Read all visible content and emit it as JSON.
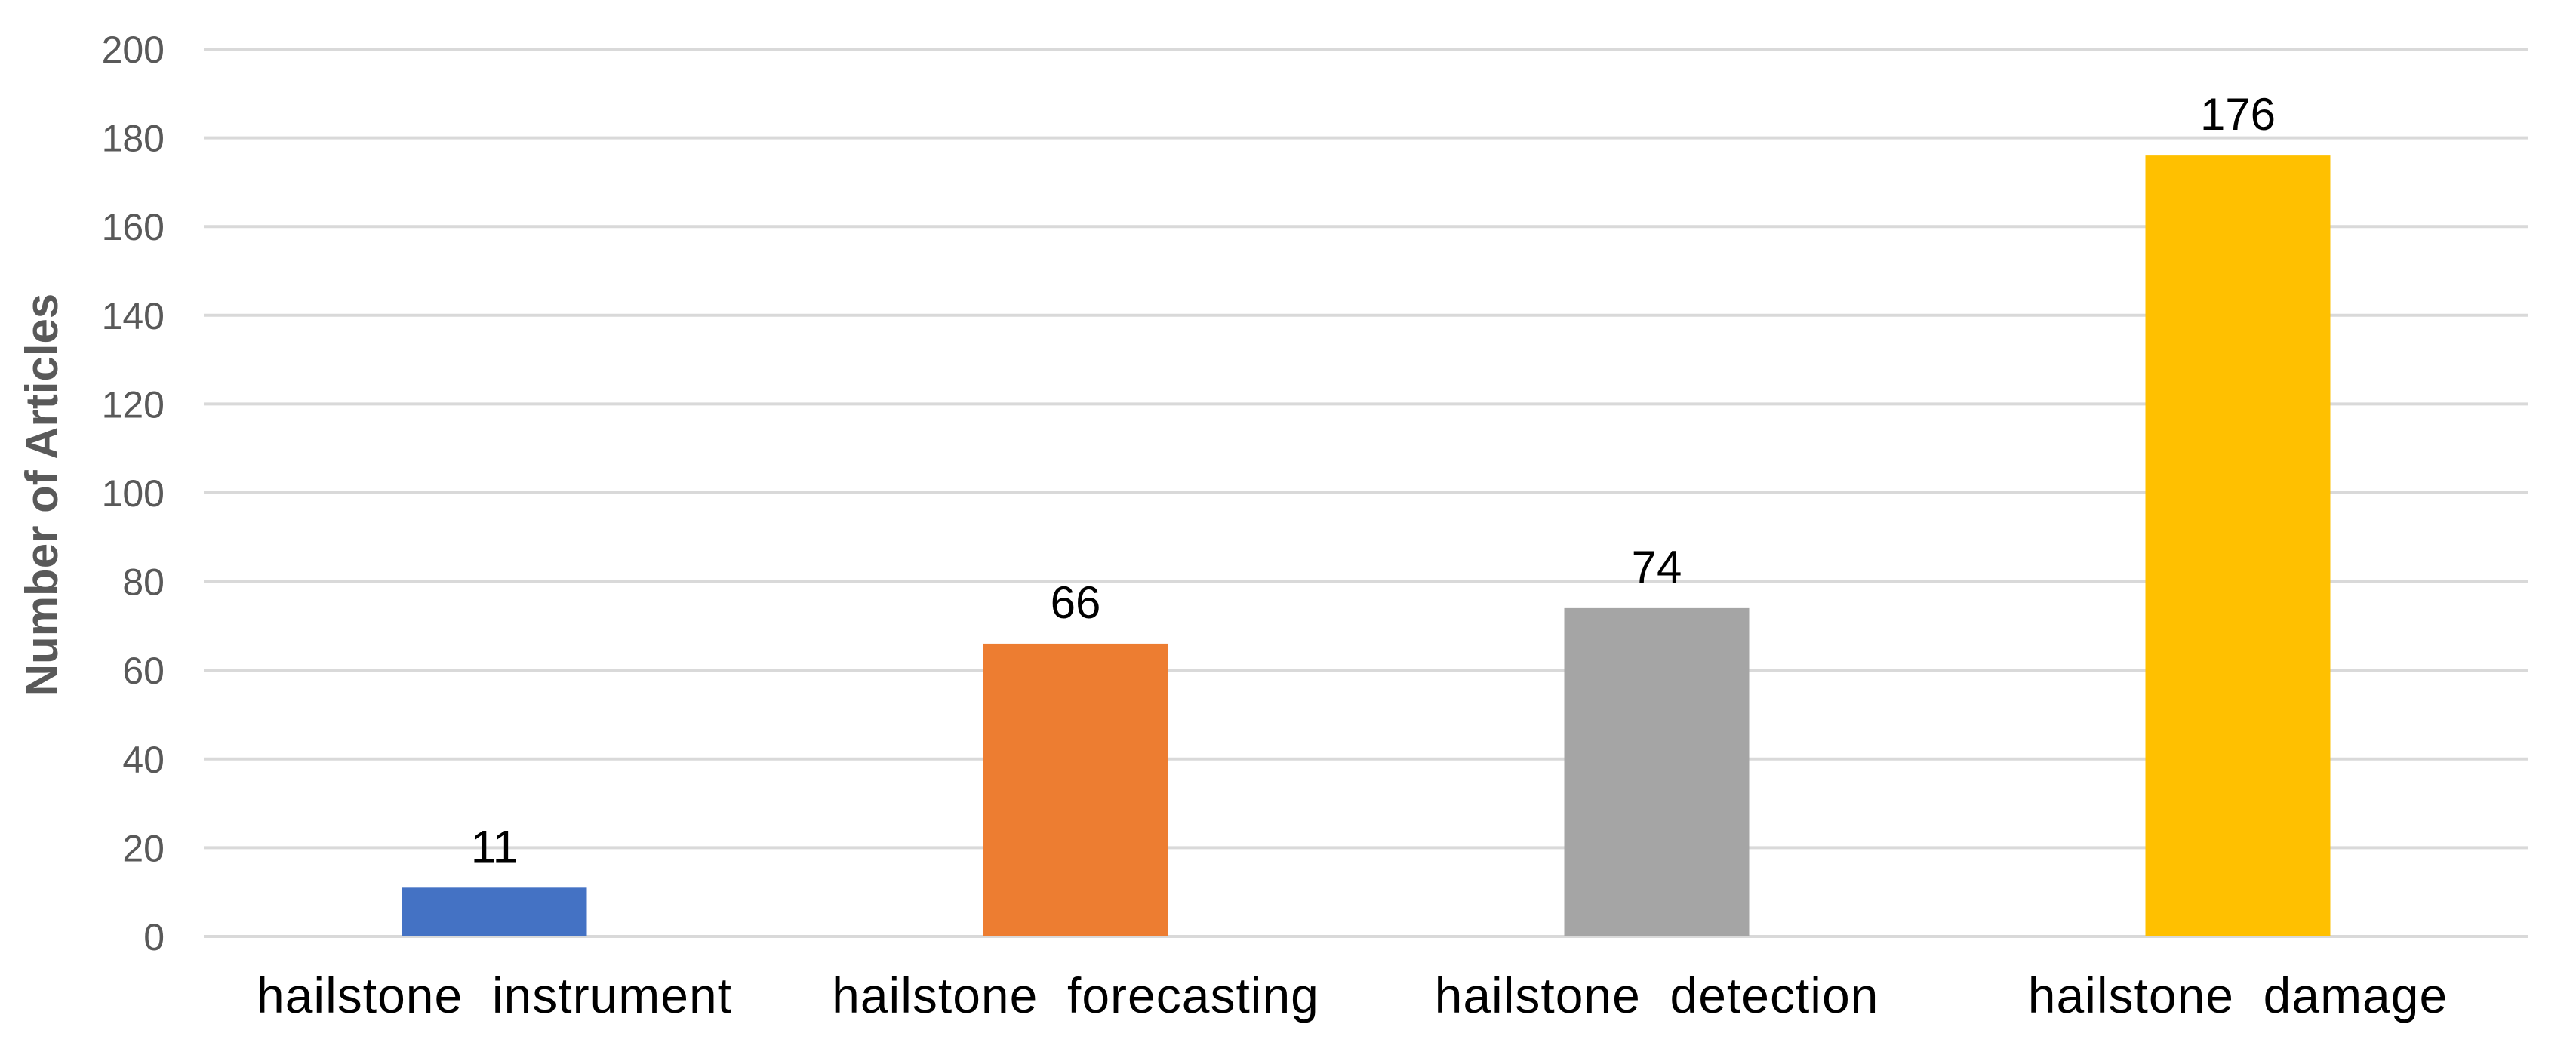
{
  "chart_data": {
    "type": "bar",
    "title": "",
    "xlabel": "",
    "ylabel": "Number of Articles",
    "ylim": [
      0,
      200
    ],
    "y_ticks": [
      0,
      20,
      40,
      60,
      80,
      100,
      120,
      140,
      160,
      180,
      200
    ],
    "grid": true,
    "legend": "none",
    "data_labels": true,
    "categories": [
      "hailstone  instrument",
      "hailstone  forecasting",
      "hailstone  detection",
      "hailstone  damage"
    ],
    "values": [
      11,
      66,
      74,
      176
    ],
    "colors": [
      "#4472C4",
      "#ED7D31",
      "#A5A5A5",
      "#FFC000"
    ]
  }
}
